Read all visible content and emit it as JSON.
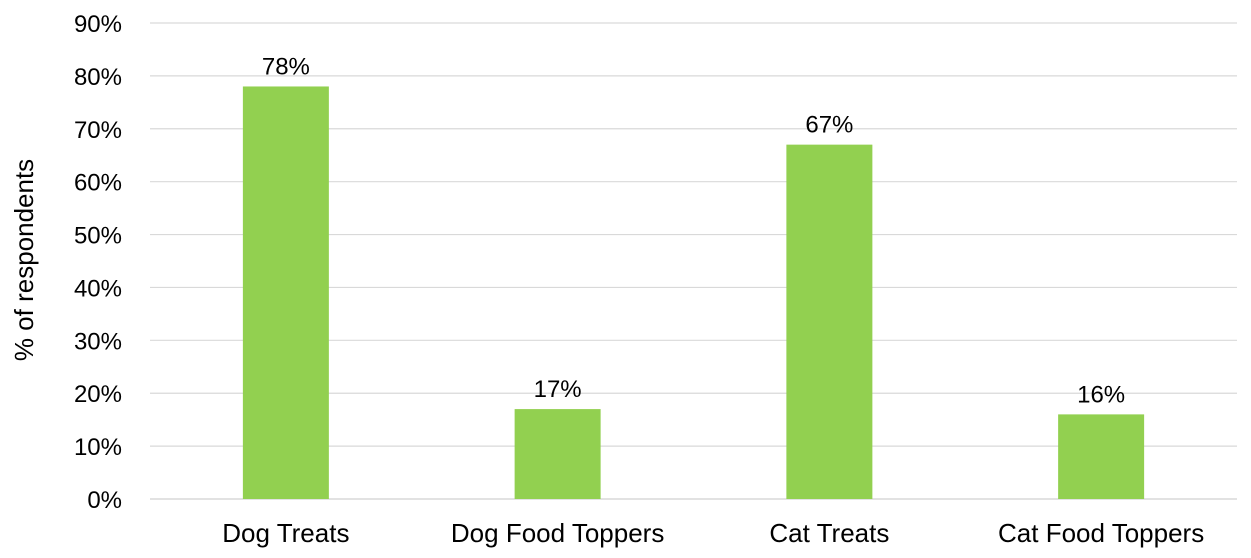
{
  "chart_data": {
    "type": "bar",
    "title": "",
    "xlabel": "",
    "ylabel": "% of respondents",
    "categories": [
      "Dog Treats",
      "Dog Food Toppers",
      "Cat Treats",
      "Cat Food Toppers"
    ],
    "values": [
      78,
      17,
      67,
      16
    ],
    "data_labels": [
      "78%",
      "17%",
      "67%",
      "16%"
    ],
    "ylim": [
      0,
      90
    ],
    "ytick_values": [
      0,
      10,
      20,
      30,
      40,
      50,
      60,
      70,
      80,
      90
    ],
    "ytick_labels": [
      "0%",
      "10%",
      "20%",
      "30%",
      "40%",
      "50%",
      "60%",
      "70%",
      "80%",
      "90%"
    ],
    "grid": true,
    "legend": "none",
    "colors": {
      "bar": "#92D050",
      "grid": "#D9D9D9",
      "axis": "#D9D9D9",
      "text": "#000000"
    }
  }
}
